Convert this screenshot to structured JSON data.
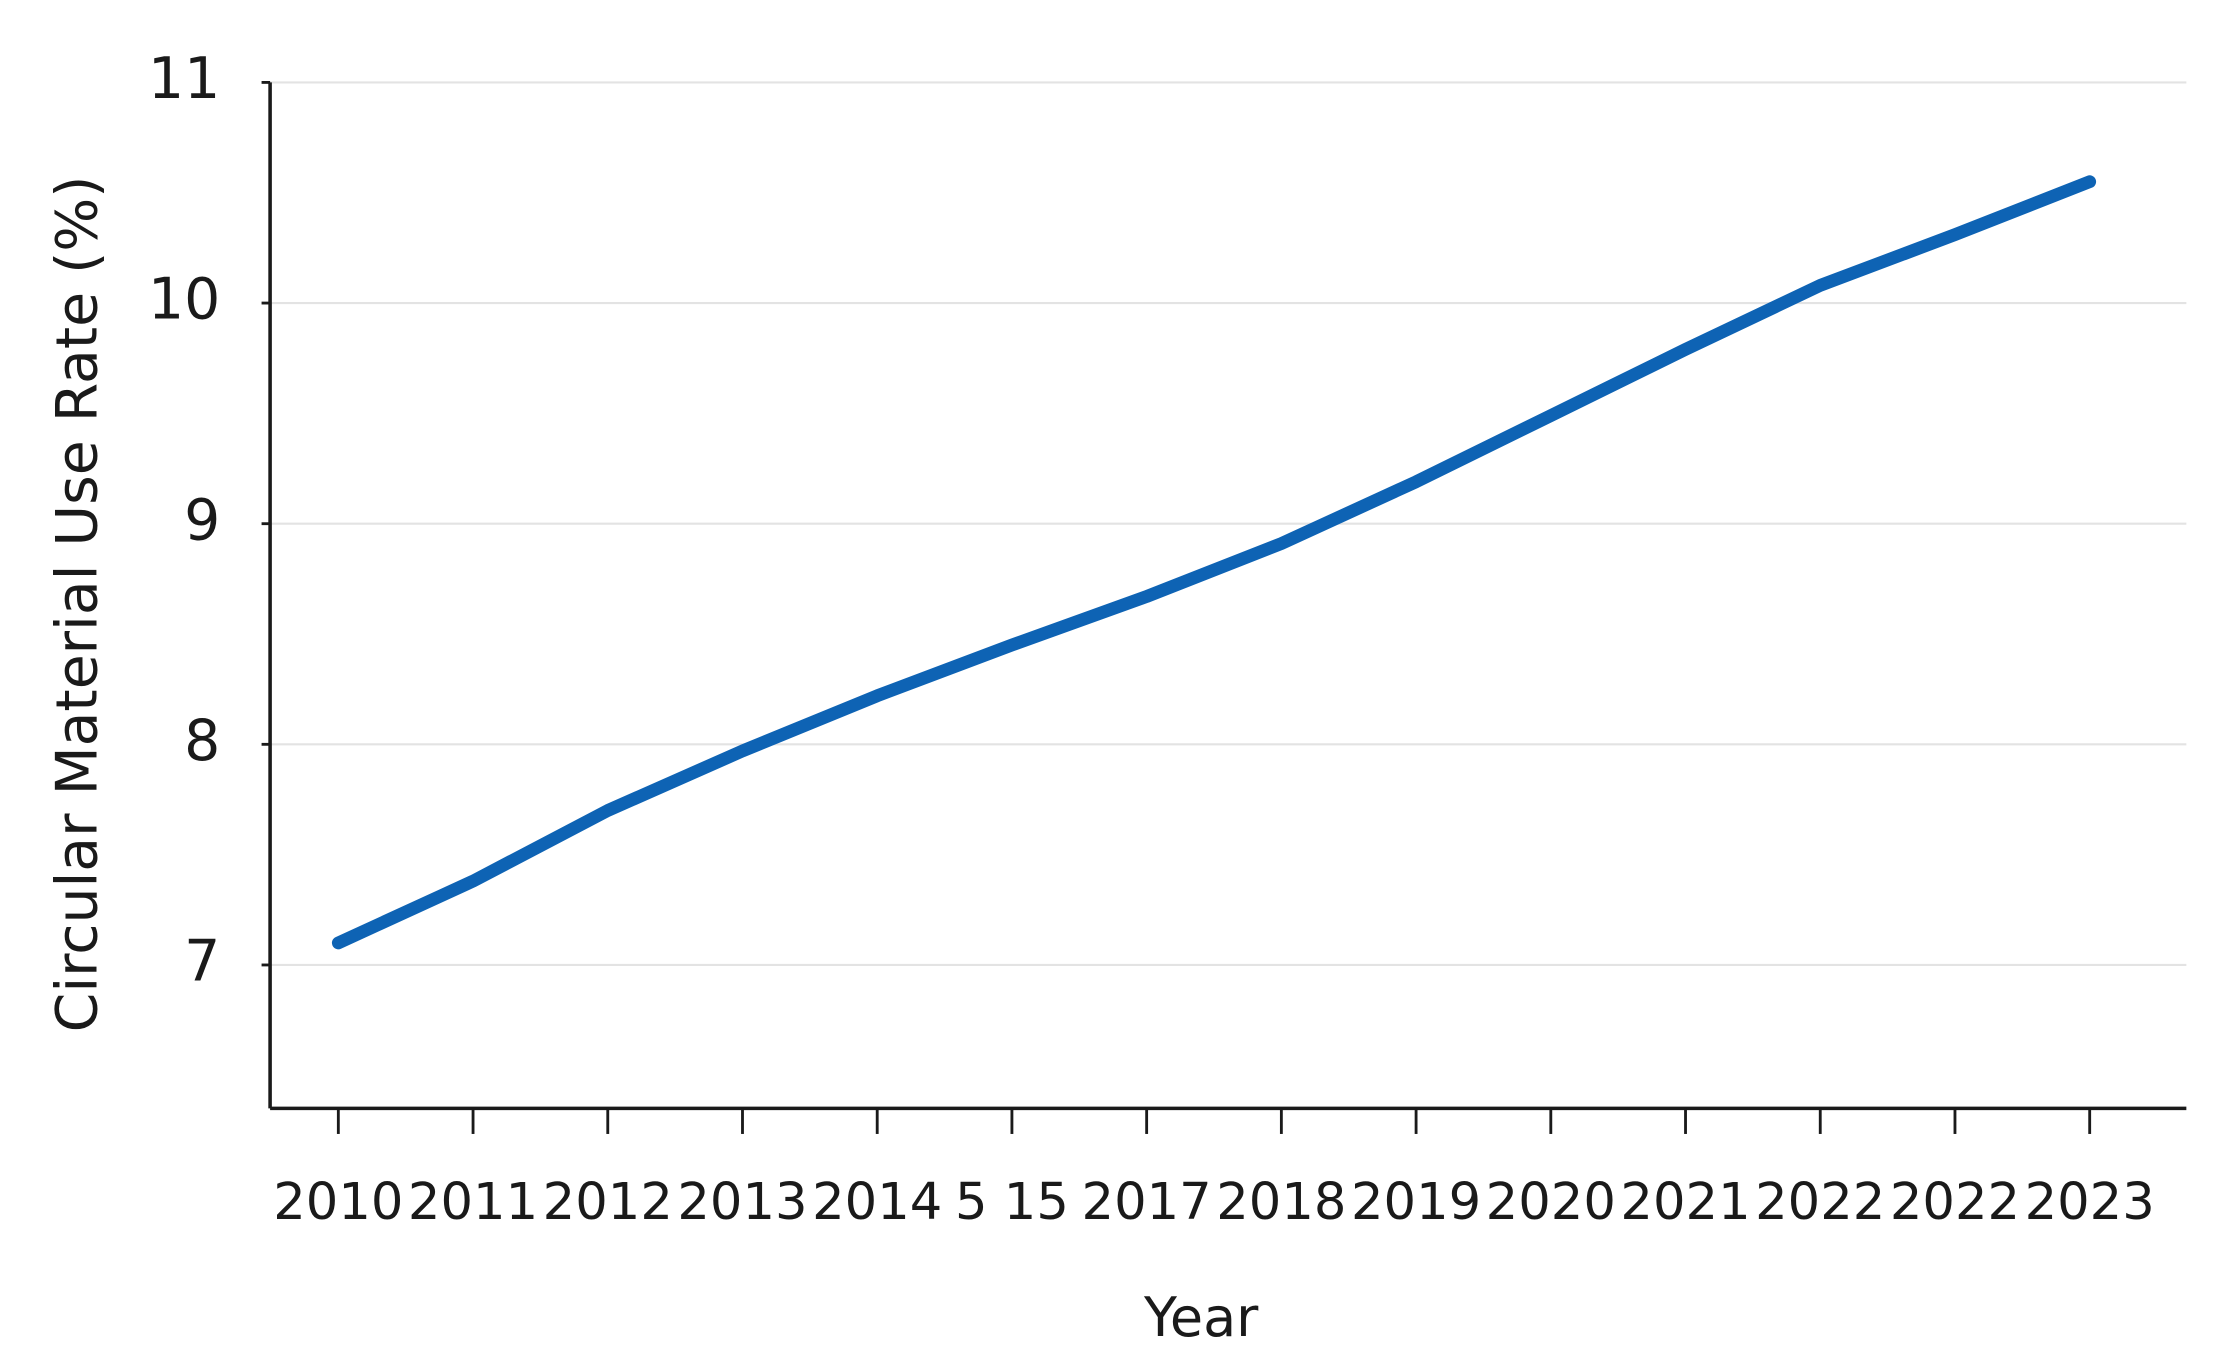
{
  "chart_data": {
    "type": "line",
    "y_label": "Circular Material Use Rate (%)",
    "x_label": "Year",
    "categories": [
      "2010",
      "2011",
      "2012",
      "2013",
      "2014",
      "5 15",
      "2017",
      "2018",
      "2019",
      "2020",
      "2021",
      "2022",
      "2022",
      "2023"
    ],
    "values": [
      7.1,
      7.38,
      7.7,
      7.97,
      8.22,
      8.45,
      8.67,
      8.91,
      9.19,
      9.49,
      9.79,
      10.08,
      10.31,
      10.55
    ],
    "color": "#0e63b4",
    "ylim": [
      6.35,
      11
    ],
    "yticks": [
      7,
      8,
      9,
      10,
      11
    ],
    "grid": true
  }
}
